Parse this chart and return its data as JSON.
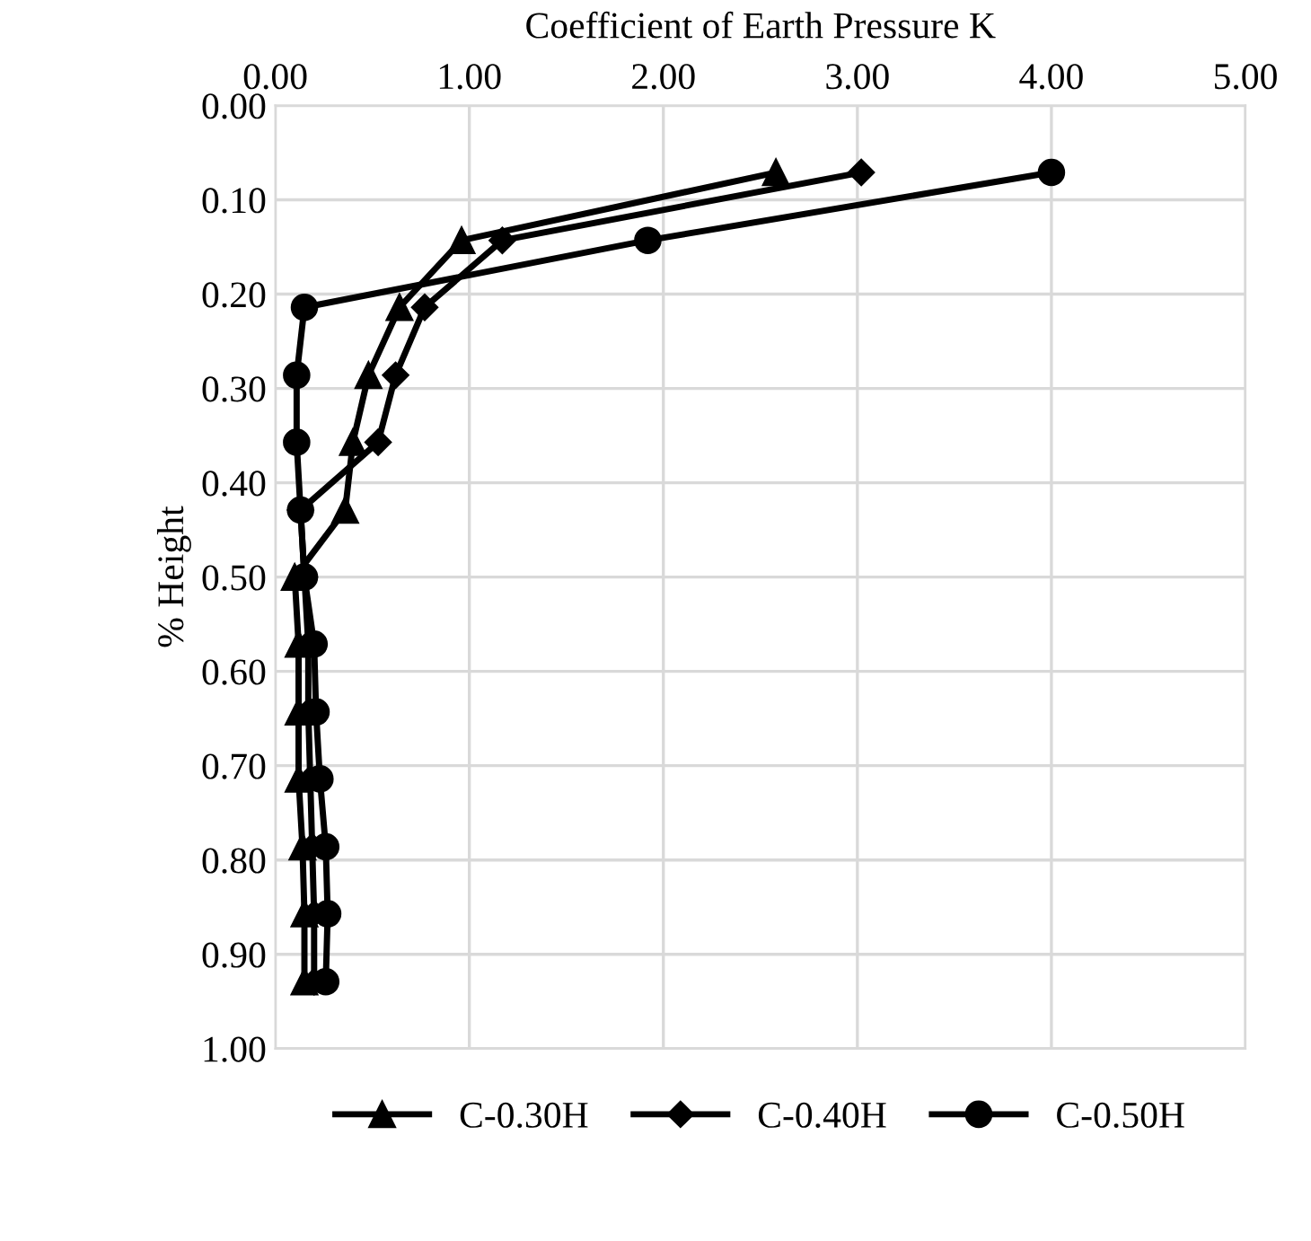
{
  "chart_data": {
    "type": "line",
    "xlabel": "Coefficient of Earth Pressure K",
    "ylabel": "% Height",
    "xlim": [
      0,
      5
    ],
    "xticks": [
      {
        "value": 0,
        "label": "0.00"
      },
      {
        "value": 1,
        "label": "1.00"
      },
      {
        "value": 2,
        "label": "2.00"
      },
      {
        "value": 3,
        "label": "3.00"
      },
      {
        "value": 4,
        "label": "4.00"
      },
      {
        "value": 5,
        "label": "5.00"
      }
    ],
    "ylim": [
      1,
      0
    ],
    "yticks": [
      {
        "value": 0,
        "label": "0.00"
      },
      {
        "value": 0.1,
        "label": "0.10"
      },
      {
        "value": 0.2,
        "label": "0.20"
      },
      {
        "value": 0.3,
        "label": "0.30"
      },
      {
        "value": 0.4,
        "label": "0.40"
      },
      {
        "value": 0.5,
        "label": "0.50"
      },
      {
        "value": 0.6,
        "label": "0.60"
      },
      {
        "value": 0.7,
        "label": "0.70"
      },
      {
        "value": 0.8,
        "label": "0.80"
      },
      {
        "value": 0.9,
        "label": "0.90"
      },
      {
        "value": 1,
        "label": "1.00"
      }
    ],
    "grid": true,
    "legend": "bottom",
    "line_style": "solid",
    "series": [
      {
        "name": "C-0.30H",
        "color": "#000000",
        "marker": "triangle",
        "x": [
          2.58,
          0.96,
          0.64,
          0.48,
          0.4,
          0.36,
          0.1,
          0.12,
          0.12,
          0.12,
          0.14,
          0.15,
          0.15
        ],
        "values": [
          0.071,
          0.143,
          0.214,
          0.286,
          0.357,
          0.429,
          0.5,
          0.571,
          0.643,
          0.714,
          0.786,
          0.857,
          0.929
        ]
      },
      {
        "name": "C-0.40H",
        "color": "#000000",
        "marker": "diamond",
        "x": [
          3.02,
          1.17,
          0.77,
          0.62,
          0.53,
          0.13,
          0.15,
          0.17,
          0.17,
          0.18,
          0.19,
          0.2,
          0.2
        ],
        "values": [
          0.071,
          0.143,
          0.214,
          0.286,
          0.357,
          0.429,
          0.5,
          0.571,
          0.643,
          0.714,
          0.786,
          0.857,
          0.929
        ]
      },
      {
        "name": "C-0.50H",
        "color": "#000000",
        "marker": "circle",
        "x": [
          4.0,
          1.92,
          0.15,
          0.11,
          0.11,
          0.13,
          0.15,
          0.2,
          0.21,
          0.23,
          0.26,
          0.27,
          0.26
        ],
        "values": [
          0.071,
          0.143,
          0.214,
          0.286,
          0.357,
          0.429,
          0.5,
          0.571,
          0.643,
          0.714,
          0.786,
          0.857,
          0.929
        ]
      }
    ]
  }
}
